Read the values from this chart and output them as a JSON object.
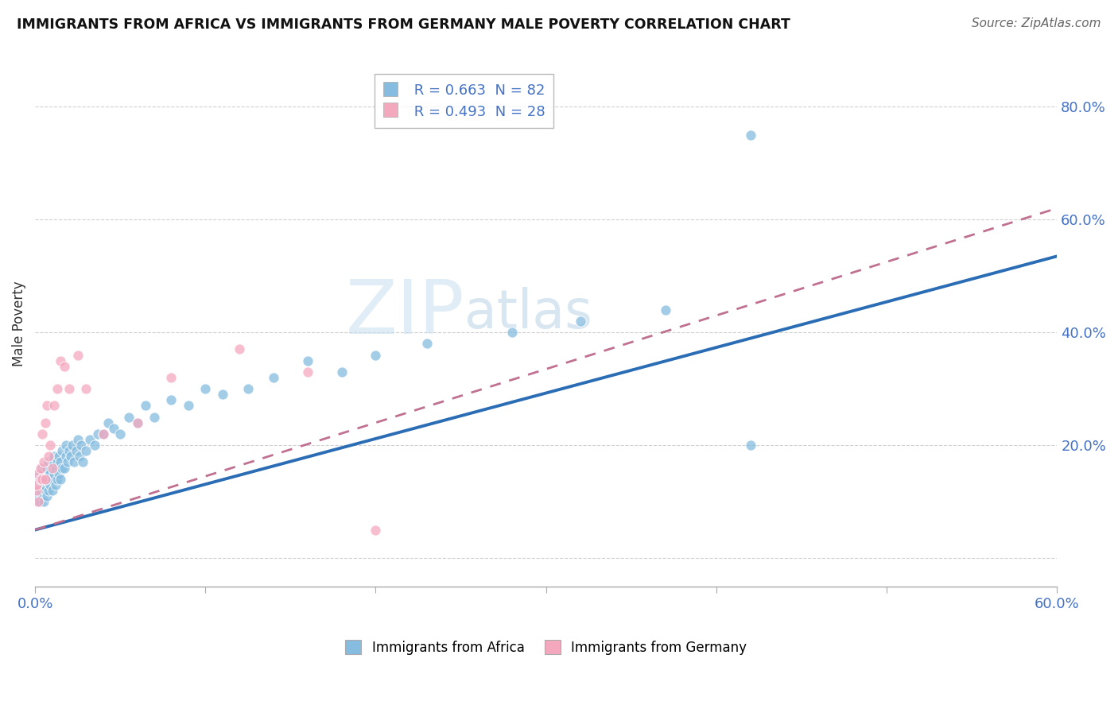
{
  "title": "IMMIGRANTS FROM AFRICA VS IMMIGRANTS FROM GERMANY MALE POVERTY CORRELATION CHART",
  "source": "Source: ZipAtlas.com",
  "ylabel": "Male Poverty",
  "xlim": [
    0.0,
    0.6
  ],
  "ylim": [
    -0.05,
    0.88
  ],
  "xticks": [
    0.0,
    0.1,
    0.2,
    0.3,
    0.4,
    0.5,
    0.6
  ],
  "xtick_labels": [
    "0.0%",
    "",
    "",
    "",
    "",
    "",
    "60.0%"
  ],
  "yticks": [
    0.0,
    0.2,
    0.4,
    0.6,
    0.8
  ],
  "ytick_labels": [
    "",
    "20.0%",
    "40.0%",
    "60.0%",
    "80.0%"
  ],
  "legend1_r": "R = 0.663",
  "legend1_n": "N = 82",
  "legend2_r": "R = 0.493",
  "legend2_n": "N = 28",
  "color_africa": "#85bce0",
  "color_germany": "#f4a8be",
  "color_trend_africa": "#2a6db5",
  "color_trend_germany": "#c07090",
  "africa_trend_x0": 0.0,
  "africa_trend_y0": 0.05,
  "africa_trend_x1": 0.6,
  "africa_trend_y1": 0.535,
  "germany_trend_x0": 0.0,
  "germany_trend_y0": 0.05,
  "germany_trend_x1": 0.6,
  "germany_trend_y1": 0.62,
  "africa_x": [
    0.001,
    0.001,
    0.002,
    0.002,
    0.002,
    0.002,
    0.003,
    0.003,
    0.003,
    0.003,
    0.004,
    0.004,
    0.004,
    0.005,
    0.005,
    0.005,
    0.006,
    0.006,
    0.006,
    0.007,
    0.007,
    0.007,
    0.008,
    0.008,
    0.008,
    0.009,
    0.009,
    0.01,
    0.01,
    0.01,
    0.011,
    0.011,
    0.012,
    0.012,
    0.013,
    0.013,
    0.014,
    0.014,
    0.015,
    0.015,
    0.016,
    0.016,
    0.017,
    0.018,
    0.018,
    0.019,
    0.02,
    0.021,
    0.022,
    0.023,
    0.024,
    0.025,
    0.026,
    0.027,
    0.028,
    0.03,
    0.032,
    0.035,
    0.037,
    0.04,
    0.043,
    0.046,
    0.05,
    0.055,
    0.06,
    0.065,
    0.07,
    0.08,
    0.09,
    0.1,
    0.11,
    0.125,
    0.14,
    0.16,
    0.18,
    0.2,
    0.23,
    0.28,
    0.32,
    0.37,
    0.42,
    0.42
  ],
  "africa_y": [
    0.12,
    0.13,
    0.1,
    0.11,
    0.14,
    0.15,
    0.1,
    0.12,
    0.13,
    0.15,
    0.11,
    0.13,
    0.16,
    0.1,
    0.13,
    0.15,
    0.12,
    0.14,
    0.16,
    0.11,
    0.14,
    0.16,
    0.12,
    0.14,
    0.17,
    0.13,
    0.15,
    0.12,
    0.14,
    0.17,
    0.15,
    0.18,
    0.13,
    0.16,
    0.14,
    0.17,
    0.15,
    0.18,
    0.14,
    0.17,
    0.16,
    0.19,
    0.16,
    0.18,
    0.2,
    0.17,
    0.19,
    0.18,
    0.2,
    0.17,
    0.19,
    0.21,
    0.18,
    0.2,
    0.17,
    0.19,
    0.21,
    0.2,
    0.22,
    0.22,
    0.24,
    0.23,
    0.22,
    0.25,
    0.24,
    0.27,
    0.25,
    0.28,
    0.27,
    0.3,
    0.29,
    0.3,
    0.32,
    0.35,
    0.33,
    0.36,
    0.38,
    0.4,
    0.42,
    0.44,
    0.75,
    0.2
  ],
  "germany_x": [
    0.001,
    0.001,
    0.002,
    0.002,
    0.003,
    0.003,
    0.004,
    0.004,
    0.005,
    0.006,
    0.006,
    0.007,
    0.008,
    0.009,
    0.01,
    0.011,
    0.013,
    0.015,
    0.017,
    0.02,
    0.025,
    0.03,
    0.04,
    0.06,
    0.08,
    0.12,
    0.16,
    0.2
  ],
  "germany_y": [
    0.12,
    0.13,
    0.1,
    0.15,
    0.14,
    0.16,
    0.22,
    0.14,
    0.17,
    0.24,
    0.14,
    0.27,
    0.18,
    0.2,
    0.16,
    0.27,
    0.3,
    0.35,
    0.34,
    0.3,
    0.36,
    0.3,
    0.22,
    0.24,
    0.32,
    0.37,
    0.33,
    0.05
  ]
}
